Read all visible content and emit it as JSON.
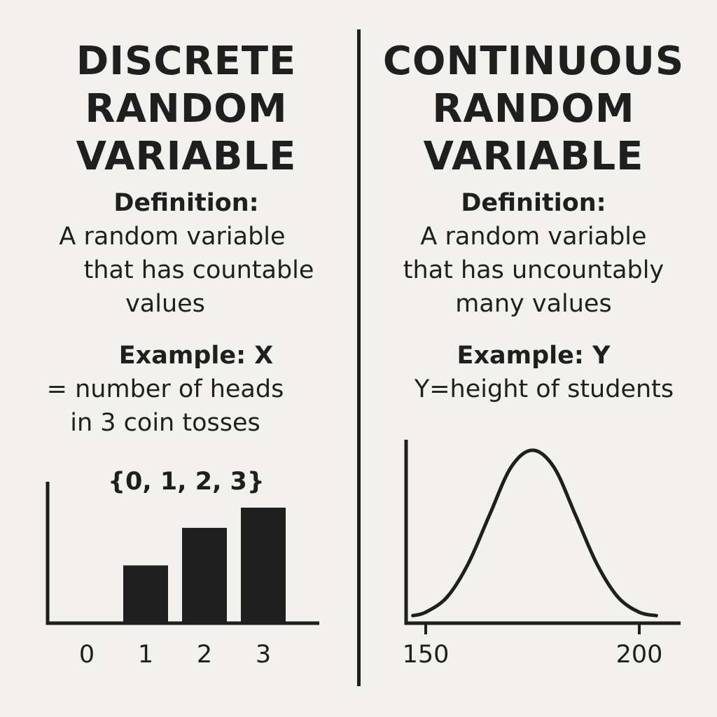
{
  "discrete": {
    "title_lines": [
      "DISCRETE",
      "RANDOM",
      "VARIABLE"
    ],
    "definition_label": "Definition:",
    "definition_lines": [
      "A random variable",
      "that has countable",
      "values"
    ],
    "example_label": "Example: X",
    "example_lines": [
      "= number of heads",
      "in 3 coin tosses"
    ],
    "value_set": "{0, 1, 2, 3}"
  },
  "continuous": {
    "title_lines": [
      "CONTINUOUS",
      "RANDOM",
      "VARIABLE"
    ],
    "definition_label": "Definition:",
    "definition_lines": [
      "A random variable",
      "that has uncountably",
      "many values"
    ],
    "example_label": "Example: Y",
    "example_lines": [
      "Y=height of students"
    ]
  },
  "chart_data": [
    {
      "type": "bar",
      "categories": [
        "0",
        "1",
        "2",
        "3"
      ],
      "values": [
        0,
        1.0,
        1.65,
        2.0
      ],
      "ylim": [
        0,
        2.5
      ],
      "title": "",
      "xlabel": "",
      "ylabel": "",
      "bar_color": "#1f1f1f"
    },
    {
      "type": "line",
      "shape": "bell curve",
      "x_tick_labels": [
        "150",
        "200"
      ],
      "x": [
        147,
        150,
        155,
        160,
        165,
        170,
        175,
        180,
        185,
        190,
        195,
        200,
        204
      ],
      "y": [
        0.02,
        0.04,
        0.13,
        0.33,
        0.62,
        0.9,
        1.0,
        0.9,
        0.62,
        0.33,
        0.13,
        0.04,
        0.02
      ],
      "xlim": [
        147,
        205
      ],
      "ylim": [
        0,
        1.15
      ],
      "title": "",
      "xlabel": "",
      "ylabel": "",
      "line_color": "#1f1f1f"
    }
  ]
}
